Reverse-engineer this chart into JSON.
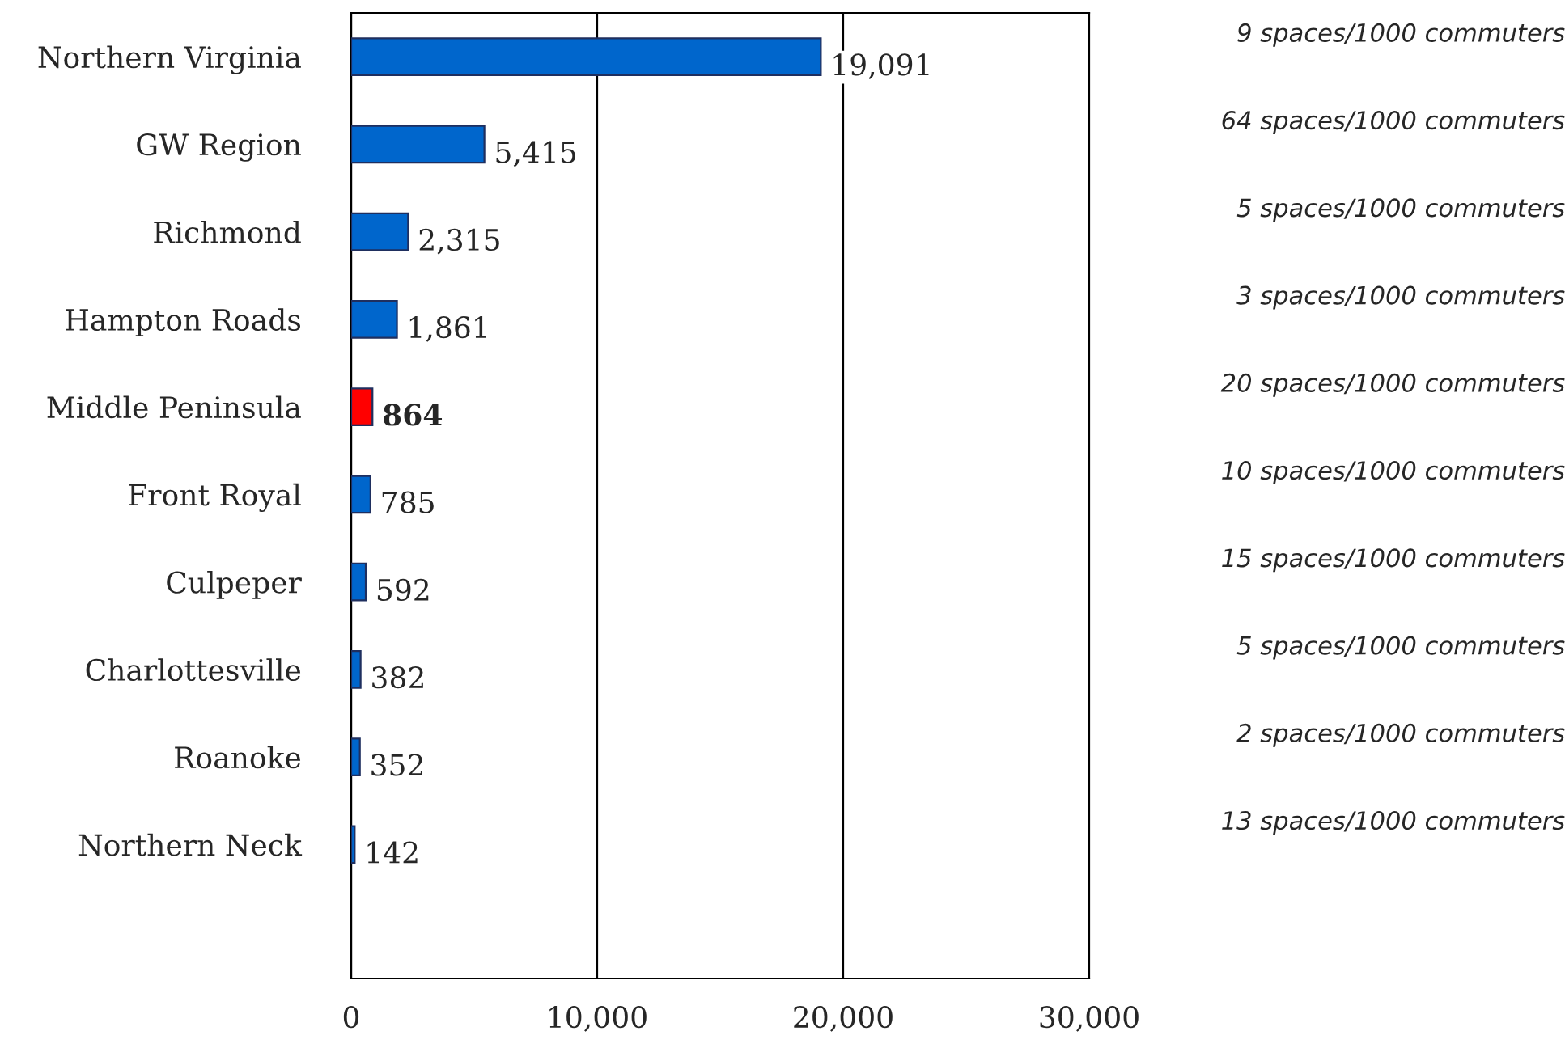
{
  "chart_data": {
    "type": "bar",
    "orientation": "horizontal",
    "categories": [
      "Northern Virginia",
      "GW Region",
      "Richmond",
      "Hampton Roads",
      "Middle Peninsula",
      "Front Royal",
      "Culpeper",
      "Charlottesville",
      "Roanoke",
      "Northern Neck"
    ],
    "values": [
      19091,
      5415,
      2315,
      1861,
      864,
      785,
      592,
      382,
      352,
      142
    ],
    "colors": [
      "#0066cc",
      "#0066cc",
      "#0066cc",
      "#0066cc",
      "#ff0000",
      "#0066cc",
      "#0066cc",
      "#0066cc",
      "#0066cc",
      "#0066cc"
    ],
    "xlim": [
      0,
      30000
    ],
    "xticks": [
      {
        "value": 0,
        "label": "0"
      },
      {
        "value": 10000,
        "label": "10,000"
      },
      {
        "value": 20000,
        "label": "20,000"
      },
      {
        "value": 30000,
        "label": "30,000"
      }
    ],
    "grid": "x",
    "legend": false,
    "value_labels": [
      "19,091",
      "5,415",
      "2,315",
      "1,861",
      "864",
      "785",
      "592",
      "382",
      "352",
      "142"
    ],
    "annotations": [
      "9 spaces/1000 commuters",
      "64 spaces/1000 commuters",
      "5 spaces/1000 commuters",
      "3 spaces/1000 commuters",
      "20 spaces/1000 commuters",
      "10 spaces/1000 commuters",
      "15 spaces/1000 commuters",
      "5 spaces/1000 commuters",
      "2 spaces/1000 commuters",
      "13 spaces/1000 commuters"
    ]
  }
}
